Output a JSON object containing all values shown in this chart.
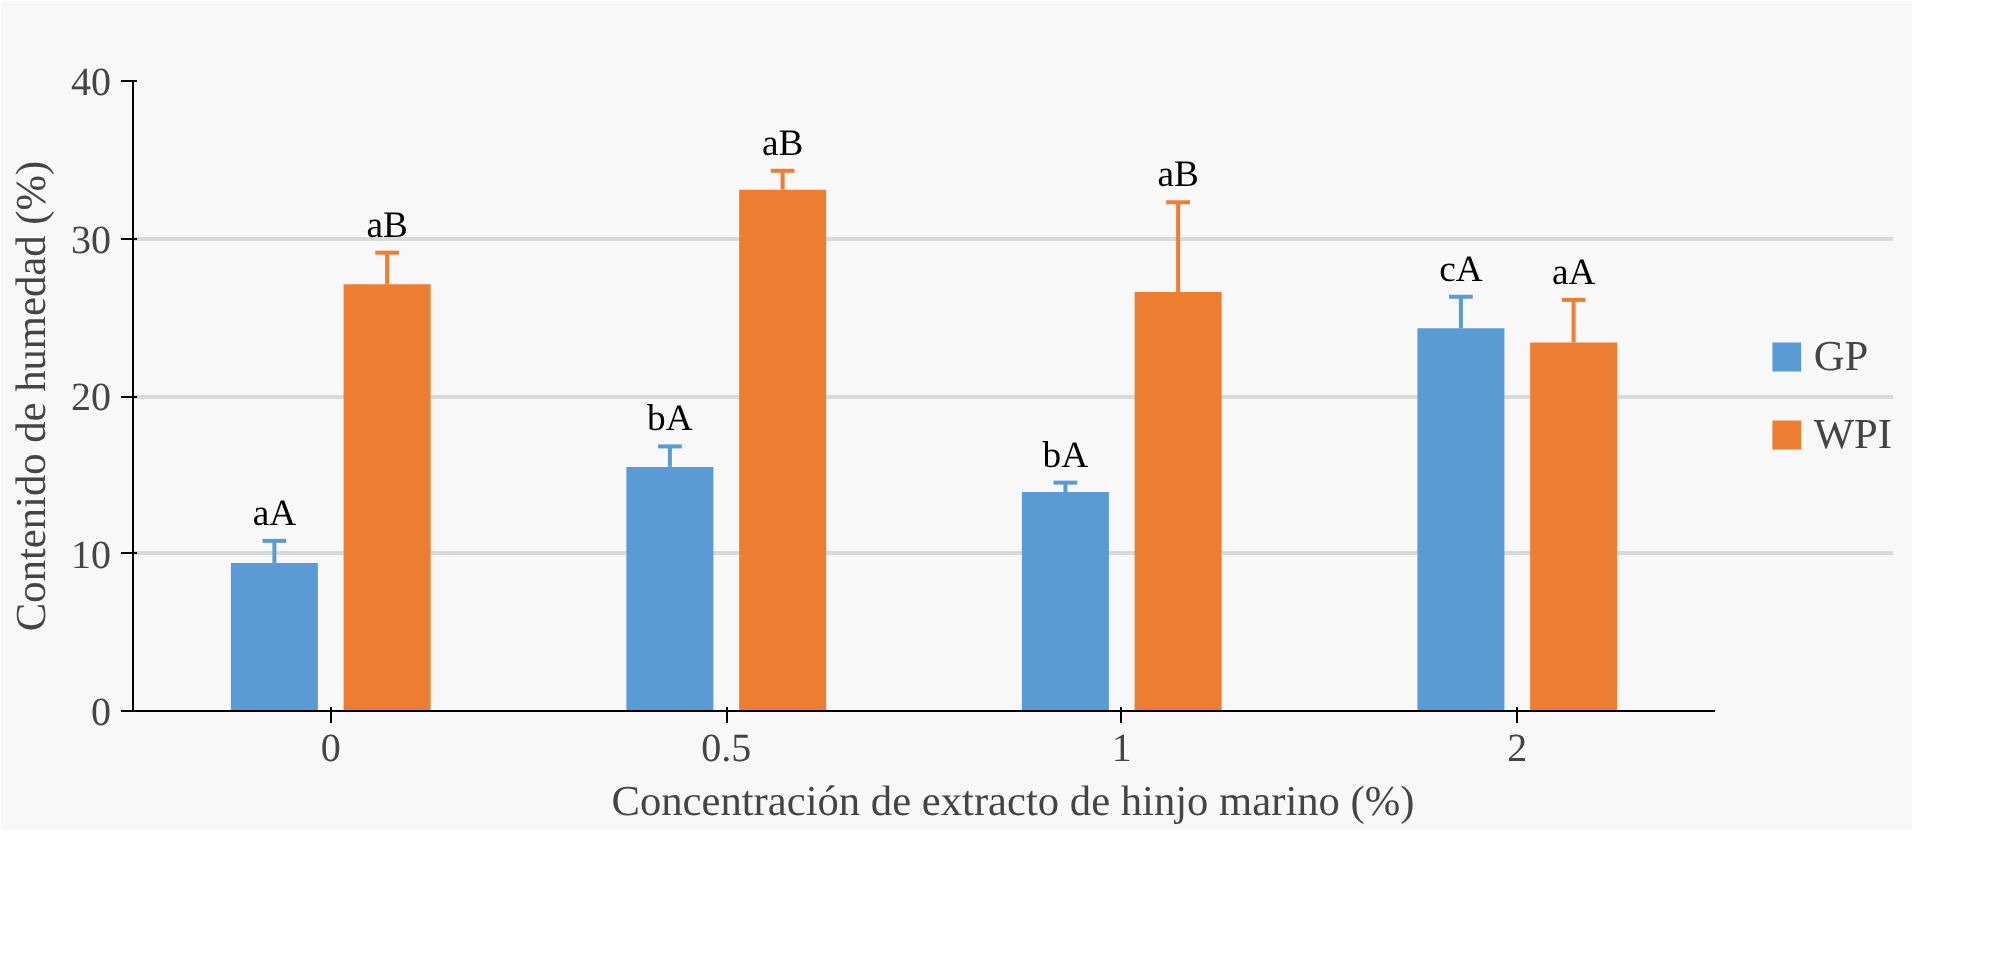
{
  "chart_data": {
    "type": "bar",
    "xlabel": "Concentración de extracto de hinjo marino (%)",
    "ylabel": "Contenido de humedad (%)",
    "categories": [
      "0",
      "0.5",
      "1",
      "2"
    ],
    "series": [
      {
        "name": "GP",
        "color": "#5b9bd5",
        "values": [
          9.4,
          15.5,
          13.9,
          24.3
        ],
        "errors": [
          1.4,
          1.3,
          0.6,
          2.0
        ],
        "value_labels": [
          "aA",
          "bA",
          "bA",
          "cA"
        ]
      },
      {
        "name": "WPI",
        "color": "#ed7d31",
        "values": [
          27.1,
          33.1,
          26.6,
          23.4
        ],
        "errors": [
          2.0,
          1.2,
          5.7,
          2.7
        ],
        "value_labels": [
          "aB",
          "aB",
          "aB",
          "aA"
        ]
      }
    ],
    "ylim": [
      0,
      40
    ],
    "yticks": [
      0,
      10,
      20,
      30,
      40
    ],
    "grid": "y",
    "legend": "right"
  }
}
